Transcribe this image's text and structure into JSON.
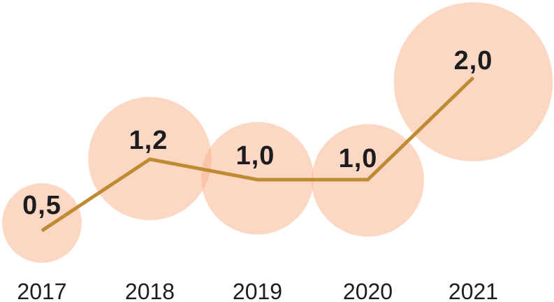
{
  "background_color": "#FFFFFF",
  "chart_data": {
    "type": "line",
    "subtype": "bubble-line",
    "title": "",
    "xlabel": "",
    "ylabel": "",
    "categories": [
      "2017",
      "2018",
      "2019",
      "2020",
      "2021"
    ],
    "values": [
      0.5,
      1.2,
      1.0,
      1.0,
      2.0
    ],
    "value_labels": [
      "0,5",
      "1,2",
      "1,0",
      "1,0",
      "2,0"
    ],
    "decimal_separator": ",",
    "legend": null,
    "axis": {
      "x_labels_visible": true,
      "y_axis_visible": false,
      "grid": false
    },
    "bubbles": {
      "area_proportional_to_value": true,
      "translucent_overlap": true
    },
    "colors": {
      "bubble_fill": "#F7B28E",
      "bubble_opacity": 0.52,
      "line": "#BE8B33",
      "value_text": "#1D1D1F",
      "axis_text": "#1D1D1F",
      "background": "#FFFFFF"
    }
  }
}
